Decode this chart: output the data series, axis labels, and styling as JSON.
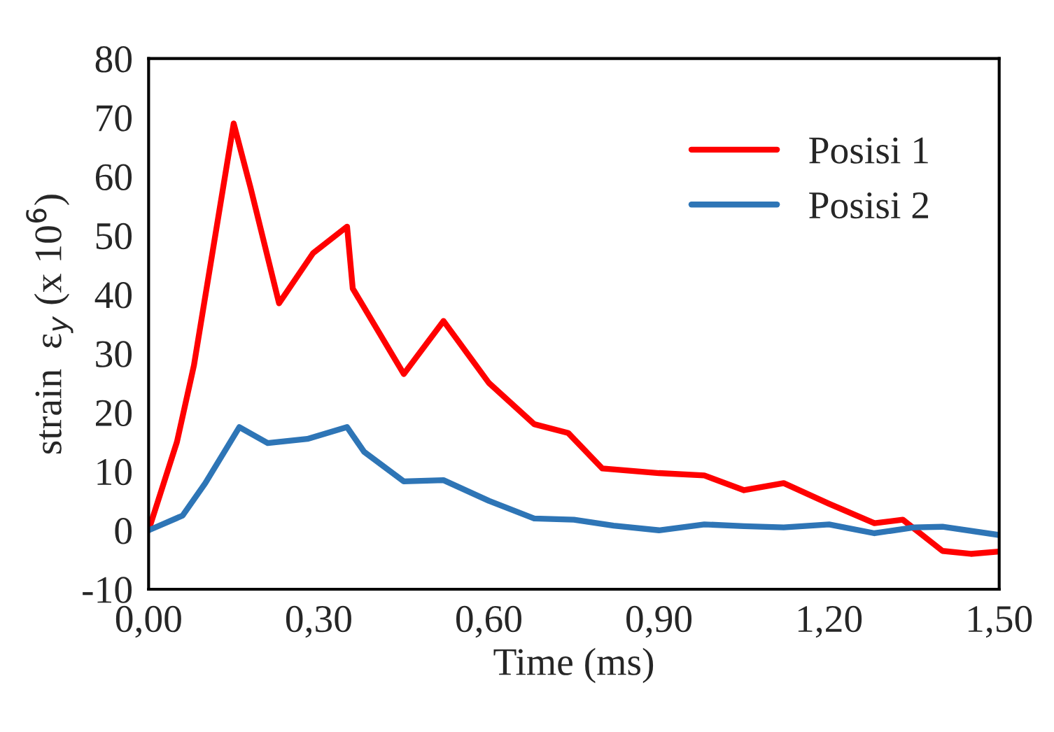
{
  "chart_data": {
    "type": "line",
    "xlabel": "Time (ms)",
    "ylabel": "strain  ε$_{y}$ (x 10$^{6}$)",
    "xlim": [
      0,
      1.5
    ],
    "ylim": [
      -10,
      80
    ],
    "xticks": [
      {
        "value": 0,
        "label": "0,00"
      },
      {
        "value": 0.3,
        "label": "0,30"
      },
      {
        "value": 0.6,
        "label": "0,60"
      },
      {
        "value": 0.9,
        "label": "0,90"
      },
      {
        "value": 1.2,
        "label": "1,20"
      },
      {
        "value": 1.5,
        "label": "1,50"
      }
    ],
    "yticks": [
      -10,
      0,
      10,
      20,
      30,
      40,
      50,
      60,
      70,
      80
    ],
    "grid": false,
    "legend": "top right",
    "marker": "none",
    "line_style": "solid",
    "series": [
      {
        "name": "Posisi 1",
        "color": "#ff0000",
        "x": [
          0,
          0.05,
          0.08,
          0.15,
          0.18,
          0.23,
          0.29,
          0.35,
          0.36,
          0.45,
          0.52,
          0.6,
          0.68,
          0.74,
          0.8,
          0.9,
          0.98,
          1.05,
          1.12,
          1.2,
          1.28,
          1.33,
          1.4,
          1.45,
          1.5
        ],
        "values": [
          0,
          15,
          28,
          69,
          58,
          38.5,
          47,
          51.5,
          41,
          26.5,
          35.5,
          25,
          18,
          16.5,
          10.5,
          9.7,
          9.3,
          6.8,
          8,
          4.5,
          1.2,
          1.8,
          -3.5,
          -4,
          -3.6
        ]
      },
      {
        "name": "Posisi 2",
        "color": "#2e75b6",
        "x": [
          0,
          0.06,
          0.1,
          0.16,
          0.21,
          0.28,
          0.35,
          0.38,
          0.45,
          0.52,
          0.6,
          0.68,
          0.75,
          0.82,
          0.9,
          0.98,
          1.05,
          1.12,
          1.2,
          1.28,
          1.35,
          1.4,
          1.5
        ],
        "values": [
          0,
          2.5,
          8,
          17.5,
          14.8,
          15.5,
          17.5,
          13.3,
          8.3,
          8.5,
          5,
          2,
          1.8,
          0.8,
          0,
          1,
          0.7,
          0.5,
          1,
          -0.5,
          0.5,
          0.6,
          -0.8
        ]
      }
    ]
  }
}
